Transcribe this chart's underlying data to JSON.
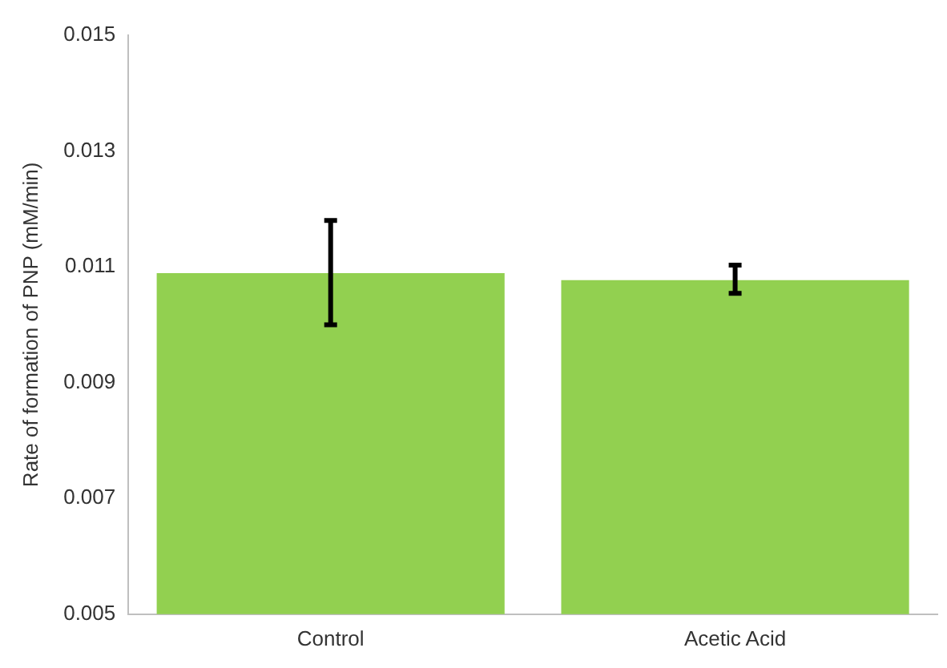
{
  "chart_data": {
    "type": "bar",
    "ylabel": "Rate of formation of PNP (mM/min)",
    "categories": [
      "Control",
      "Acetic Acid"
    ],
    "values": [
      0.01089,
      0.01077
    ],
    "errors": [
      [
        0.01,
        0.0118
      ],
      [
        0.01054,
        0.01103
      ]
    ],
    "color": "#92d050",
    "ylim": [
      0.005,
      0.015
    ],
    "yticks": [
      0.005,
      0.007,
      0.009,
      0.011,
      0.013,
      0.015
    ],
    "grid": false,
    "legend": false
  }
}
